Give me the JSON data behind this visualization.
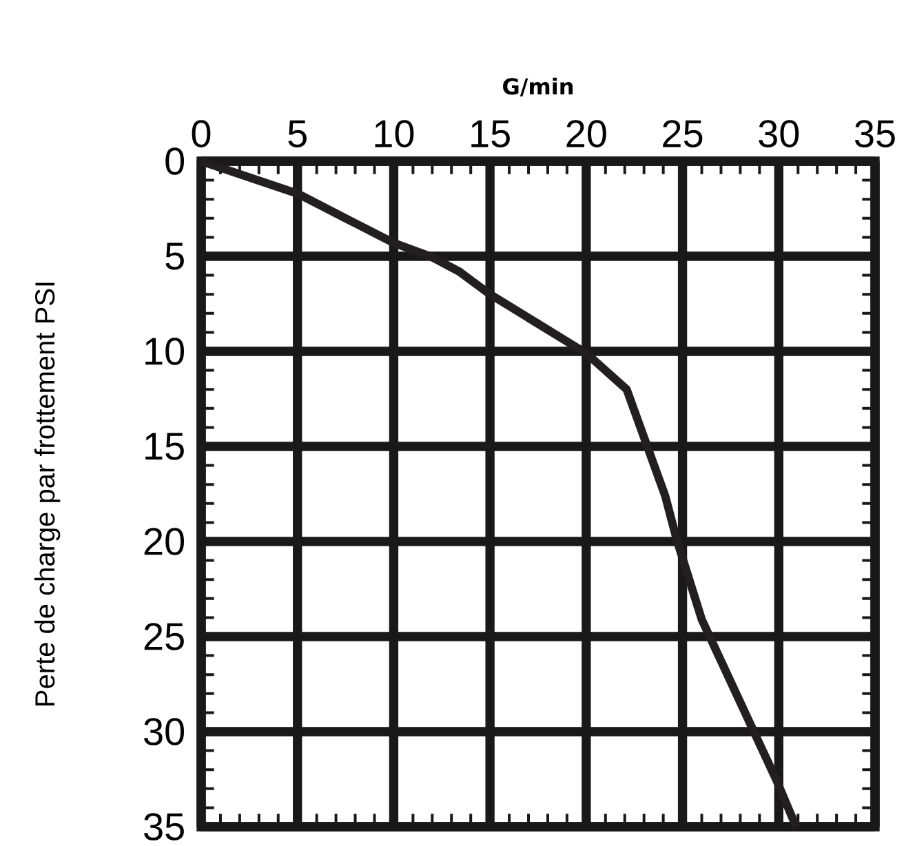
{
  "chart_data": {
    "type": "line",
    "xlabel": "G/min",
    "ylabel": "Perte de charge par frottement PSI",
    "xlim": [
      0,
      35
    ],
    "xticks": [
      0,
      5,
      10,
      15,
      20,
      25,
      30,
      35
    ],
    "ylim": [
      35,
      0
    ],
    "yticks": [
      0,
      5,
      10,
      15,
      20,
      25,
      30,
      35
    ],
    "grid": true,
    "marker": "none",
    "line_style": "solid",
    "series": [
      {
        "color": "#231f20",
        "x": [
          0,
          5,
          10,
          11.9,
          13.4,
          15,
          20,
          22.1,
          24.1,
          24.7,
          26,
          29.9,
          30.9
        ],
        "values": [
          0,
          1.7,
          4.3,
          5,
          5.8,
          7,
          10.1,
          12,
          17.6,
          19.9,
          24.1,
          32.6,
          35
        ]
      }
    ]
  }
}
